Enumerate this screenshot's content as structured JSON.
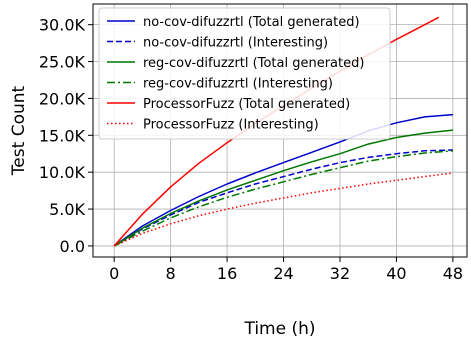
{
  "chart_data": {
    "type": "line",
    "xlabel": "Time (h)",
    "ylabel": "Test Count",
    "xlim": [
      -3,
      50
    ],
    "ylim": [
      -1500,
      32800
    ],
    "x_ticks": [
      0,
      8,
      16,
      24,
      32,
      40,
      48
    ],
    "x_tick_labels": [
      "0",
      "8",
      "16",
      "24",
      "32",
      "40",
      "48"
    ],
    "y_ticks": [
      0,
      5000,
      10000,
      15000,
      20000,
      25000,
      30000
    ],
    "y_tick_labels": [
      "0.0",
      "5.0K",
      "10.0K",
      "15.0K",
      "20.0K",
      "25.0K",
      "30.0K"
    ],
    "grid": true,
    "legend_position": "top-left",
    "series": [
      {
        "name": "no-cov-difuzzrtl (Total generated)",
        "color": "#0000cc",
        "dash": "solid",
        "points": [
          [
            0,
            0
          ],
          [
            4,
            2700
          ],
          [
            8,
            4800
          ],
          [
            12,
            6700
          ],
          [
            16,
            8400
          ],
          [
            20,
            9900
          ],
          [
            24,
            11300
          ],
          [
            28,
            12700
          ],
          [
            32,
            14100
          ],
          [
            36,
            15600
          ],
          [
            40,
            16700
          ],
          [
            44,
            17500
          ],
          [
            48,
            17800
          ]
        ]
      },
      {
        "name": "no-cov-difuzzrtl (Interesting)",
        "color": "#0000cc",
        "dash": "dashed",
        "points": [
          [
            0,
            0
          ],
          [
            4,
            2300
          ],
          [
            8,
            4200
          ],
          [
            12,
            5900
          ],
          [
            16,
            7200
          ],
          [
            20,
            8400
          ],
          [
            24,
            9400
          ],
          [
            28,
            10400
          ],
          [
            32,
            11300
          ],
          [
            36,
            12000
          ],
          [
            40,
            12500
          ],
          [
            44,
            12900
          ],
          [
            48,
            13000
          ]
        ]
      },
      {
        "name": "reg-cov-difuzzrtl (Total generated)",
        "color": "#007700",
        "dash": "solid",
        "points": [
          [
            0,
            0
          ],
          [
            4,
            2400
          ],
          [
            8,
            4400
          ],
          [
            12,
            6100
          ],
          [
            16,
            7600
          ],
          [
            20,
            8900
          ],
          [
            24,
            10200
          ],
          [
            28,
            11400
          ],
          [
            32,
            12500
          ],
          [
            36,
            13800
          ],
          [
            40,
            14700
          ],
          [
            44,
            15300
          ],
          [
            48,
            15700
          ]
        ]
      },
      {
        "name": "reg-cov-difuzzrtl (Interesting)",
        "color": "#007700",
        "dash": "dashdot",
        "points": [
          [
            0,
            0
          ],
          [
            4,
            2000
          ],
          [
            8,
            3800
          ],
          [
            12,
            5300
          ],
          [
            16,
            6600
          ],
          [
            20,
            7700
          ],
          [
            24,
            8700
          ],
          [
            28,
            9700
          ],
          [
            32,
            10600
          ],
          [
            36,
            11500
          ],
          [
            40,
            12100
          ],
          [
            44,
            12600
          ],
          [
            48,
            12900
          ]
        ]
      },
      {
        "name": "ProcessorFuzz (Total generated)",
        "color": "#ff0000",
        "dash": "solid",
        "points": [
          [
            0,
            0
          ],
          [
            4,
            4300
          ],
          [
            8,
            8000
          ],
          [
            12,
            11200
          ],
          [
            16,
            14000
          ],
          [
            20,
            16600
          ],
          [
            24,
            19000
          ],
          [
            28,
            21400
          ],
          [
            32,
            23700
          ],
          [
            36,
            25900
          ],
          [
            40,
            28000
          ],
          [
            44,
            30000
          ],
          [
            46,
            31000
          ]
        ]
      },
      {
        "name": "ProcessorFuzz (Interesting)",
        "color": "#ff0000",
        "dash": "dotted",
        "points": [
          [
            0,
            0
          ],
          [
            4,
            1700
          ],
          [
            8,
            3000
          ],
          [
            12,
            4100
          ],
          [
            16,
            5000
          ],
          [
            20,
            5800
          ],
          [
            24,
            6500
          ],
          [
            28,
            7200
          ],
          [
            32,
            7800
          ],
          [
            36,
            8400
          ],
          [
            40,
            8900
          ],
          [
            44,
            9400
          ],
          [
            48,
            9900
          ]
        ]
      }
    ]
  }
}
